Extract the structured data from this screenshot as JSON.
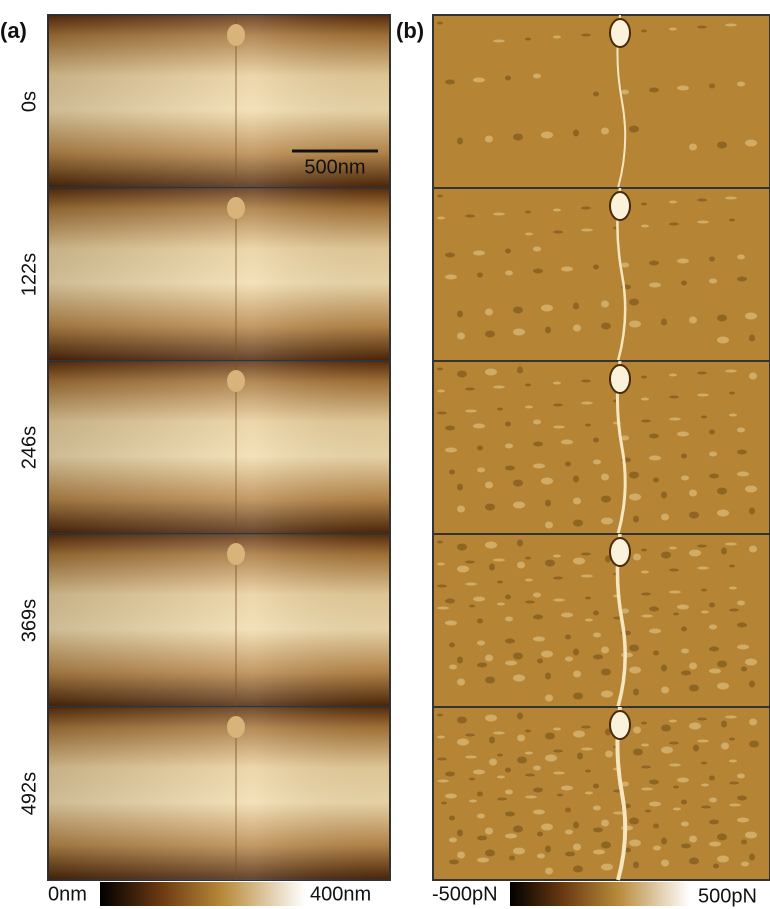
{
  "panels": {
    "a": {
      "label": "(a)"
    },
    "b": {
      "label": "(b)"
    }
  },
  "frames": [
    "0s",
    "122s",
    "246s",
    "369s",
    "492s"
  ],
  "scale_bar": "500nm",
  "colorbars": {
    "height": {
      "min_label": "0nm",
      "max_label": "400nm"
    },
    "force": {
      "min_label": "-500pN",
      "max_label": "500pN"
    }
  }
}
